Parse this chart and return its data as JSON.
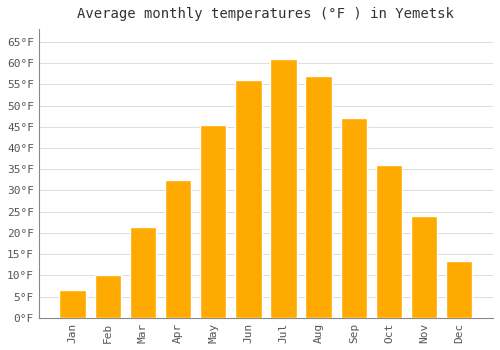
{
  "title": "Average monthly temperatures (°F ) in Yemetsk",
  "months": [
    "Jan",
    "Feb",
    "Mar",
    "Apr",
    "May",
    "Jun",
    "Jul",
    "Aug",
    "Sep",
    "Oct",
    "Nov",
    "Dec"
  ],
  "values": [
    6.5,
    10.0,
    21.5,
    32.5,
    45.5,
    56.0,
    61.0,
    57.0,
    47.0,
    36.0,
    24.0,
    13.5
  ],
  "bar_color": "#FFAA00",
  "bar_edge_color": "#FFFFFF",
  "background_color": "#FFFFFF",
  "plot_bg_color": "#FFFFFF",
  "grid_color": "#DDDDDD",
  "yticks": [
    0,
    5,
    10,
    15,
    20,
    25,
    30,
    35,
    40,
    45,
    50,
    55,
    60,
    65
  ],
  "ylim": [
    0,
    68
  ],
  "title_fontsize": 10,
  "tick_fontsize": 8,
  "font_family": "monospace",
  "bar_width": 0.75
}
